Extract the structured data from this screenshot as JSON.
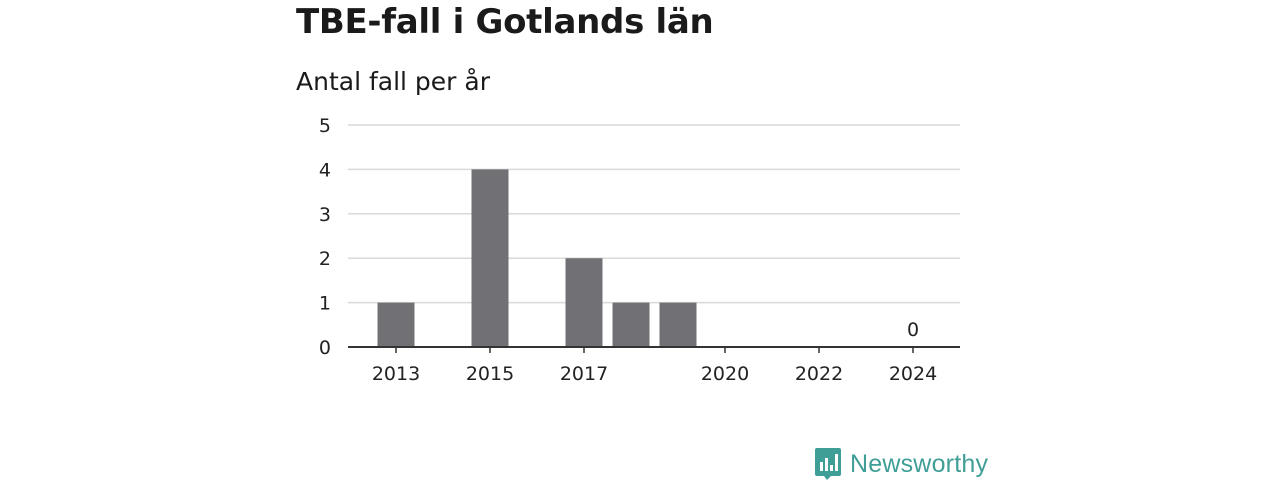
{
  "header": {
    "title": "TBE-fall i Gotlands län",
    "subtitle": "Antal fall per år"
  },
  "brand": {
    "name": "Newsworthy",
    "color": "#3f9e96",
    "logo_icon": "bar-chart-speech-bubble-icon"
  },
  "colors": {
    "bar": "#717075",
    "grid": "#d9d9d9",
    "axis": "#333333"
  },
  "chart_data": {
    "type": "bar",
    "title": "TBE-fall i Gotlands län",
    "subtitle": "Antal fall per år",
    "xlabel": "",
    "ylabel": "",
    "categories": [
      "2013",
      "2014",
      "2015",
      "2016",
      "2017",
      "2018",
      "2019",
      "2020",
      "2021",
      "2022",
      "2023",
      "2024"
    ],
    "values": [
      1,
      0,
      4,
      0,
      2,
      1,
      1,
      0,
      0,
      0,
      0,
      0
    ],
    "x_tick_labels": [
      "2013",
      "2015",
      "2017",
      "2020",
      "2022",
      "2024"
    ],
    "ylim": [
      0,
      5
    ],
    "y_ticks": [
      0,
      1,
      2,
      3,
      4,
      5
    ],
    "grid": true,
    "annotations": [
      {
        "category": "2024",
        "text": "0"
      }
    ]
  }
}
